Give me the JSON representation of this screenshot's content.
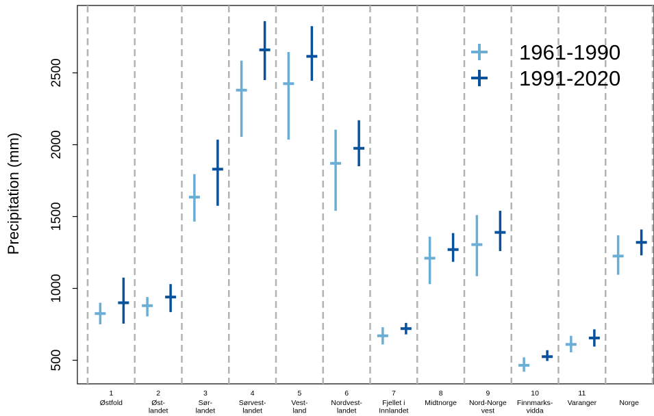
{
  "chart_data": {
    "type": "error-bar",
    "ylabel": "Precipitation (mm)",
    "xlabel": "",
    "ylim": [
      410,
      2980
    ],
    "yticks": [
      500,
      1000,
      1500,
      2000,
      2500
    ],
    "grid": "vertical dashed separators",
    "legend": {
      "position": "top-right"
    },
    "categories": [
      {
        "num": "1",
        "name": "Østfold"
      },
      {
        "num": "2",
        "name": "Øst-\nlandet"
      },
      {
        "num": "3",
        "name": "Sør-\nlandet"
      },
      {
        "num": "4",
        "name": "Sørvest-\nlandet"
      },
      {
        "num": "5",
        "name": "Vest-\nland"
      },
      {
        "num": "6",
        "name": "Nordvest-\nlandet"
      },
      {
        "num": "7",
        "name": "Fjellet i\nInnlandet"
      },
      {
        "num": "8",
        "name": "Midtnorge"
      },
      {
        "num": "9",
        "name": "Nord-Norge\nvest"
      },
      {
        "num": "10",
        "name": "Finnmarks-\nvidda"
      },
      {
        "num": "11",
        "name": "Varanger"
      },
      {
        "num": "",
        "name": "Norge"
      }
    ],
    "series": [
      {
        "name": "1961-1990",
        "color": "#6aaed6",
        "values": [
          825,
          880,
          1635,
          2380,
          2425,
          1870,
          670,
          1210,
          1305,
          465,
          610,
          1225
        ],
        "lower": [
          750,
          805,
          1465,
          2055,
          2035,
          1540,
          610,
          1030,
          1085,
          420,
          555,
          1095
        ],
        "upper": [
          900,
          940,
          1795,
          2585,
          2645,
          2105,
          730,
          1360,
          1510,
          520,
          670,
          1370
        ]
      },
      {
        "name": "1991-2020",
        "color": "#08519c",
        "values": [
          900,
          940,
          1830,
          2660,
          2615,
          1975,
          720,
          1270,
          1390,
          525,
          655,
          1320
        ],
        "lower": [
          755,
          835,
          1575,
          2450,
          2445,
          1850,
          680,
          1185,
          1260,
          495,
          595,
          1230
        ],
        "upper": [
          1075,
          1030,
          2035,
          2860,
          2825,
          2170,
          760,
          1385,
          1540,
          570,
          715,
          1410
        ]
      }
    ]
  }
}
